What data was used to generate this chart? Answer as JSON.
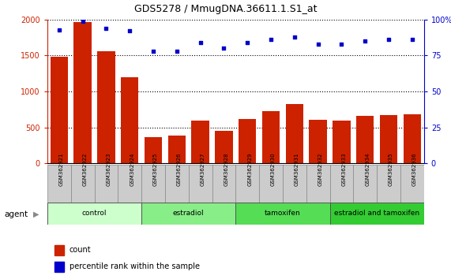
{
  "title": "GDS5278 / MmugDNA.36611.1.S1_at",
  "samples": [
    "GSM362921",
    "GSM362922",
    "GSM362923",
    "GSM362924",
    "GSM362925",
    "GSM362926",
    "GSM362927",
    "GSM362928",
    "GSM362929",
    "GSM362930",
    "GSM362931",
    "GSM362932",
    "GSM362933",
    "GSM362934",
    "GSM362935",
    "GSM362936"
  ],
  "counts": [
    1480,
    1960,
    1560,
    1200,
    360,
    380,
    590,
    450,
    620,
    720,
    820,
    600,
    590,
    660,
    670,
    680
  ],
  "percentile_ranks": [
    93,
    99,
    94,
    92,
    78,
    78,
    84,
    80,
    84,
    86,
    88,
    83,
    83,
    85,
    86,
    86
  ],
  "bar_color": "#cc2200",
  "dot_color": "#0000cc",
  "ylim_left": [
    0,
    2000
  ],
  "ylim_right": [
    0,
    100
  ],
  "yticks_left": [
    0,
    500,
    1000,
    1500,
    2000
  ],
  "yticks_right": [
    0,
    25,
    50,
    75,
    100
  ],
  "ytick_right_labels": [
    "0",
    "25",
    "50",
    "75",
    "100%"
  ],
  "groups": [
    {
      "label": "control",
      "start": 0,
      "end": 4,
      "color": "#ccffcc"
    },
    {
      "label": "estradiol",
      "start": 4,
      "end": 8,
      "color": "#88ee88"
    },
    {
      "label": "tamoxifen",
      "start": 8,
      "end": 12,
      "color": "#55dd55"
    },
    {
      "label": "estradiol and tamoxifen",
      "start": 12,
      "end": 16,
      "color": "#33cc33"
    }
  ],
  "agent_label": "agent",
  "legend_count_label": "count",
  "legend_pct_label": "percentile rank within the sample",
  "background_color": "#ffffff",
  "left_axis_color": "#cc2200",
  "right_axis_color": "#0000cc",
  "xticklabel_bg": "#dddddd"
}
